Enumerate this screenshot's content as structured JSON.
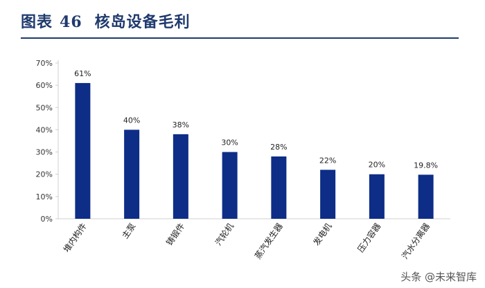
{
  "figure": {
    "label": "图表",
    "number": "46",
    "title": "核岛设备毛利"
  },
  "watermark": {
    "text": "头条 @未来智库"
  },
  "colors": {
    "bar": "#0d2d86",
    "title": "#1f3a6d",
    "axis": "#cfcfcf"
  },
  "chart_data": {
    "type": "bar",
    "categories": [
      "堆内构件",
      "主泵",
      "铸锻件",
      "汽轮机",
      "蒸汽发生器",
      "发电机",
      "压力容器",
      "汽水分离器"
    ],
    "values": [
      61,
      40,
      38,
      30,
      28,
      22,
      20,
      19.8
    ],
    "value_labels": [
      "61%",
      "40%",
      "38%",
      "30%",
      "28%",
      "22%",
      "20%",
      "19.8%"
    ],
    "title": "",
    "xlabel": "",
    "ylabel": "",
    "ylim": [
      0,
      70
    ],
    "yticks": [
      0,
      10,
      20,
      30,
      40,
      50,
      60,
      70
    ],
    "ytick_labels": [
      "0%",
      "10%",
      "20%",
      "30%",
      "40%",
      "50%",
      "60%",
      "70%"
    ],
    "grid": false,
    "legend": "none"
  }
}
